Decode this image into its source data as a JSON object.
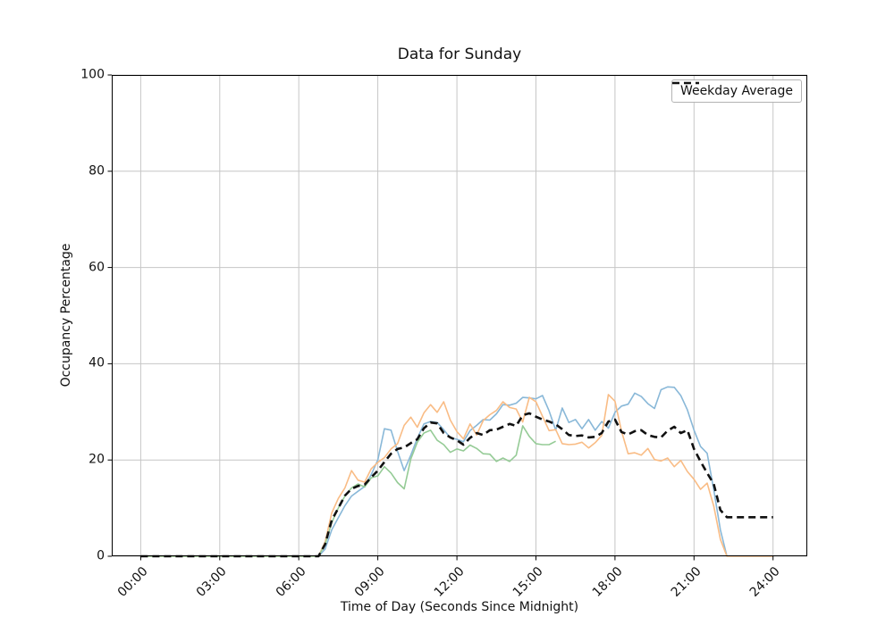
{
  "chart_data": {
    "type": "line",
    "title": "Data for Sunday",
    "xlabel": "Time of Day (Seconds Since Midnight)",
    "ylabel": "Occupancy Percentage",
    "xlim_hours": [
      -1.1,
      25.3
    ],
    "ylim": [
      0,
      100
    ],
    "grid": true,
    "grid_color": "#c6c6c6",
    "spine_color": "#000000",
    "x_ticks": [
      {
        "hour": 0,
        "label": "00:00"
      },
      {
        "hour": 3,
        "label": "03:00"
      },
      {
        "hour": 6,
        "label": "06:00"
      },
      {
        "hour": 9,
        "label": "09:00"
      },
      {
        "hour": 12,
        "label": "12:00"
      },
      {
        "hour": 15,
        "label": "15:00"
      },
      {
        "hour": 18,
        "label": "18:00"
      },
      {
        "hour": 21,
        "label": "21:00"
      },
      {
        "hour": 24,
        "label": "24:00"
      }
    ],
    "y_ticks": [
      0,
      20,
      40,
      60,
      80,
      100
    ],
    "legend": {
      "position": "upper right",
      "entries": [
        "Weekday Average"
      ]
    },
    "series": [
      {
        "name": "sunday-observation-1",
        "color": "#89b8d8",
        "style": "solid",
        "width": 1.6,
        "x_start_hours": 0,
        "x_step_hours": 0.25,
        "y": [
          0,
          0,
          0,
          0,
          0,
          0,
          0,
          0,
          0,
          0,
          0,
          0,
          0,
          0,
          0,
          0,
          0,
          0,
          0,
          0,
          0,
          0,
          0,
          0,
          0,
          0,
          0,
          0,
          1.5,
          5.5,
          8,
          10.5,
          12.5,
          13.5,
          14.5,
          17,
          20,
          26.5,
          26.2,
          21.8,
          17.8,
          21,
          24.5,
          27.5,
          28,
          27.8,
          26.3,
          24.6,
          24.3,
          23.8,
          26.1,
          27.2,
          28.4,
          28.3,
          29.6,
          31.5,
          31.4,
          31.8,
          33,
          32.9,
          32.7,
          33.4,
          30.2,
          26.2,
          30.8,
          27.8,
          28.4,
          26.5,
          28.4,
          26.2,
          28,
          26.6,
          29.9,
          31.2,
          31.6,
          33.9,
          33.2,
          31.7,
          30.7,
          34.6,
          35.2,
          35.1,
          33.4,
          30.4,
          26.2,
          22.8,
          21.4,
          13.8,
          5.5,
          0,
          0,
          0,
          0,
          0,
          0,
          0,
          0
        ]
      },
      {
        "name": "sunday-observation-2",
        "color": "#f9bc85",
        "style": "solid",
        "width": 1.6,
        "x_start_hours": 0,
        "x_step_hours": 0.25,
        "y": [
          0,
          0,
          0,
          0,
          0,
          0,
          0,
          0,
          0,
          0,
          0,
          0,
          0,
          0,
          0,
          0,
          0,
          0,
          0,
          0,
          0,
          0,
          0,
          0,
          0,
          0,
          0,
          0,
          3,
          9,
          12,
          14.2,
          17.8,
          15.8,
          15.4,
          18.2,
          19.5,
          20.5,
          22.3,
          23.4,
          27.2,
          28.9,
          26.8,
          29.8,
          31.5,
          29.9,
          32.1,
          28.3,
          25.9,
          24.4,
          27.5,
          25.2,
          28.2,
          29.4,
          30.3,
          32.1,
          30.9,
          30.6,
          27.9,
          33,
          32.1,
          29.1,
          26.1,
          26.3,
          23.4,
          23.2,
          23.3,
          23.7,
          22.5,
          23.6,
          25.1,
          33.6,
          32.2,
          26,
          21.3,
          21.5,
          21,
          22.4,
          20.1,
          19.8,
          20.4,
          18.6,
          19.9,
          17.6,
          16,
          13.9,
          15.2,
          10.4,
          3.5,
          0,
          0,
          0,
          0,
          0,
          0,
          0,
          0
        ]
      },
      {
        "name": "sunday-observation-3",
        "color": "#95cb96",
        "style": "solid",
        "width": 1.6,
        "x_start_hours": 0,
        "x_step_hours": 0.25,
        "y": [
          0,
          0,
          0,
          0,
          0,
          0,
          0,
          0,
          0,
          0,
          0,
          0,
          0,
          0,
          0,
          0,
          0,
          0,
          0,
          0,
          0,
          0,
          0,
          0,
          0,
          0,
          0,
          0,
          2.5,
          7,
          10,
          12.5,
          14.2,
          15,
          14.4,
          16.3,
          16.7,
          18.6,
          17.3,
          15.3,
          14,
          20.2,
          23.7,
          25.6,
          26.2,
          24.1,
          23.2,
          21.6,
          22.3,
          21.9,
          23.1,
          22.4,
          21.3,
          21.2,
          19.7,
          20.4,
          19.7,
          21,
          27.1,
          24.9,
          23.4,
          23.2,
          23.2,
          23.9
        ]
      },
      {
        "name": "weekday-average",
        "legend_label": "Weekday Average",
        "color": "#111111",
        "style": "dashed",
        "dash": [
          8,
          5
        ],
        "width": 2.6,
        "x_start_hours": 0,
        "x_step_hours": 0.25,
        "y": [
          0,
          0,
          0,
          0,
          0,
          0,
          0,
          0,
          0,
          0,
          0,
          0,
          0,
          0,
          0,
          0,
          0,
          0,
          0,
          0,
          0,
          0,
          0,
          0,
          0,
          0,
          0,
          0,
          2.5,
          7.5,
          10,
          12.6,
          14,
          14.6,
          14.9,
          16.4,
          17.8,
          19.6,
          21.3,
          22.3,
          22.6,
          23.5,
          24.3,
          26.6,
          27.8,
          27.6,
          25.6,
          24.7,
          24.1,
          23.2,
          24.6,
          25.6,
          25.2,
          26.2,
          26.3,
          26.9,
          27.5,
          27.1,
          29.3,
          29.7,
          29,
          28.4,
          28,
          27.4,
          26.4,
          25.2,
          25,
          25.1,
          24.7,
          24.8,
          25.6,
          28,
          28.4,
          25.8,
          25.3,
          26,
          26.2,
          25.2,
          24.8,
          24.7,
          26.1,
          26.9,
          25.6,
          26.2,
          22.3,
          19.7,
          17.3,
          15,
          9.6,
          8.1,
          8.1,
          8.1,
          8.1,
          8.1,
          8.1,
          8.1,
          8.1
        ]
      }
    ]
  }
}
